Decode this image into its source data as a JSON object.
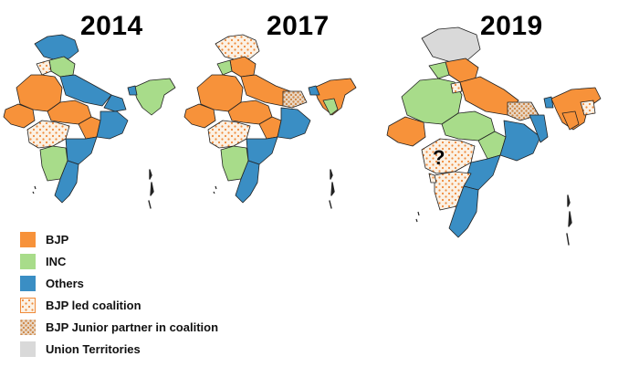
{
  "titles": {
    "map_2014": "2014",
    "map_2017": "2017",
    "map_2019": "2019"
  },
  "colors": {
    "bjp": "#F7923A",
    "inc": "#A8DC8A",
    "others": "#3A8EC4",
    "coalition_bg": "#FBF1E4",
    "coalition_dot": "#F08A3A",
    "junior_bg": "#E9D9C8",
    "junior_dot": "#D08A4A",
    "ut": "#D9D9D9",
    "border": "#222222"
  },
  "legend": {
    "items": [
      {
        "key": "bjp",
        "label": "BJP",
        "pattern": "solid",
        "color": "#F7923A"
      },
      {
        "key": "inc",
        "label": "INC",
        "pattern": "solid",
        "color": "#A8DC8A"
      },
      {
        "key": "others",
        "label": "Others",
        "pattern": "solid",
        "color": "#3A8EC4"
      },
      {
        "key": "coalition",
        "label": "BJP led coalition",
        "pattern": "dots",
        "color": "#F08A3A"
      },
      {
        "key": "junior",
        "label": "BJP Junior partner in coalition",
        "pattern": "dense-dots",
        "color": "#D08A4A"
      },
      {
        "key": "ut",
        "label": "Union Territories",
        "pattern": "solid",
        "color": "#D9D9D9"
      }
    ]
  },
  "annotation": {
    "unknown_state": "?"
  }
}
